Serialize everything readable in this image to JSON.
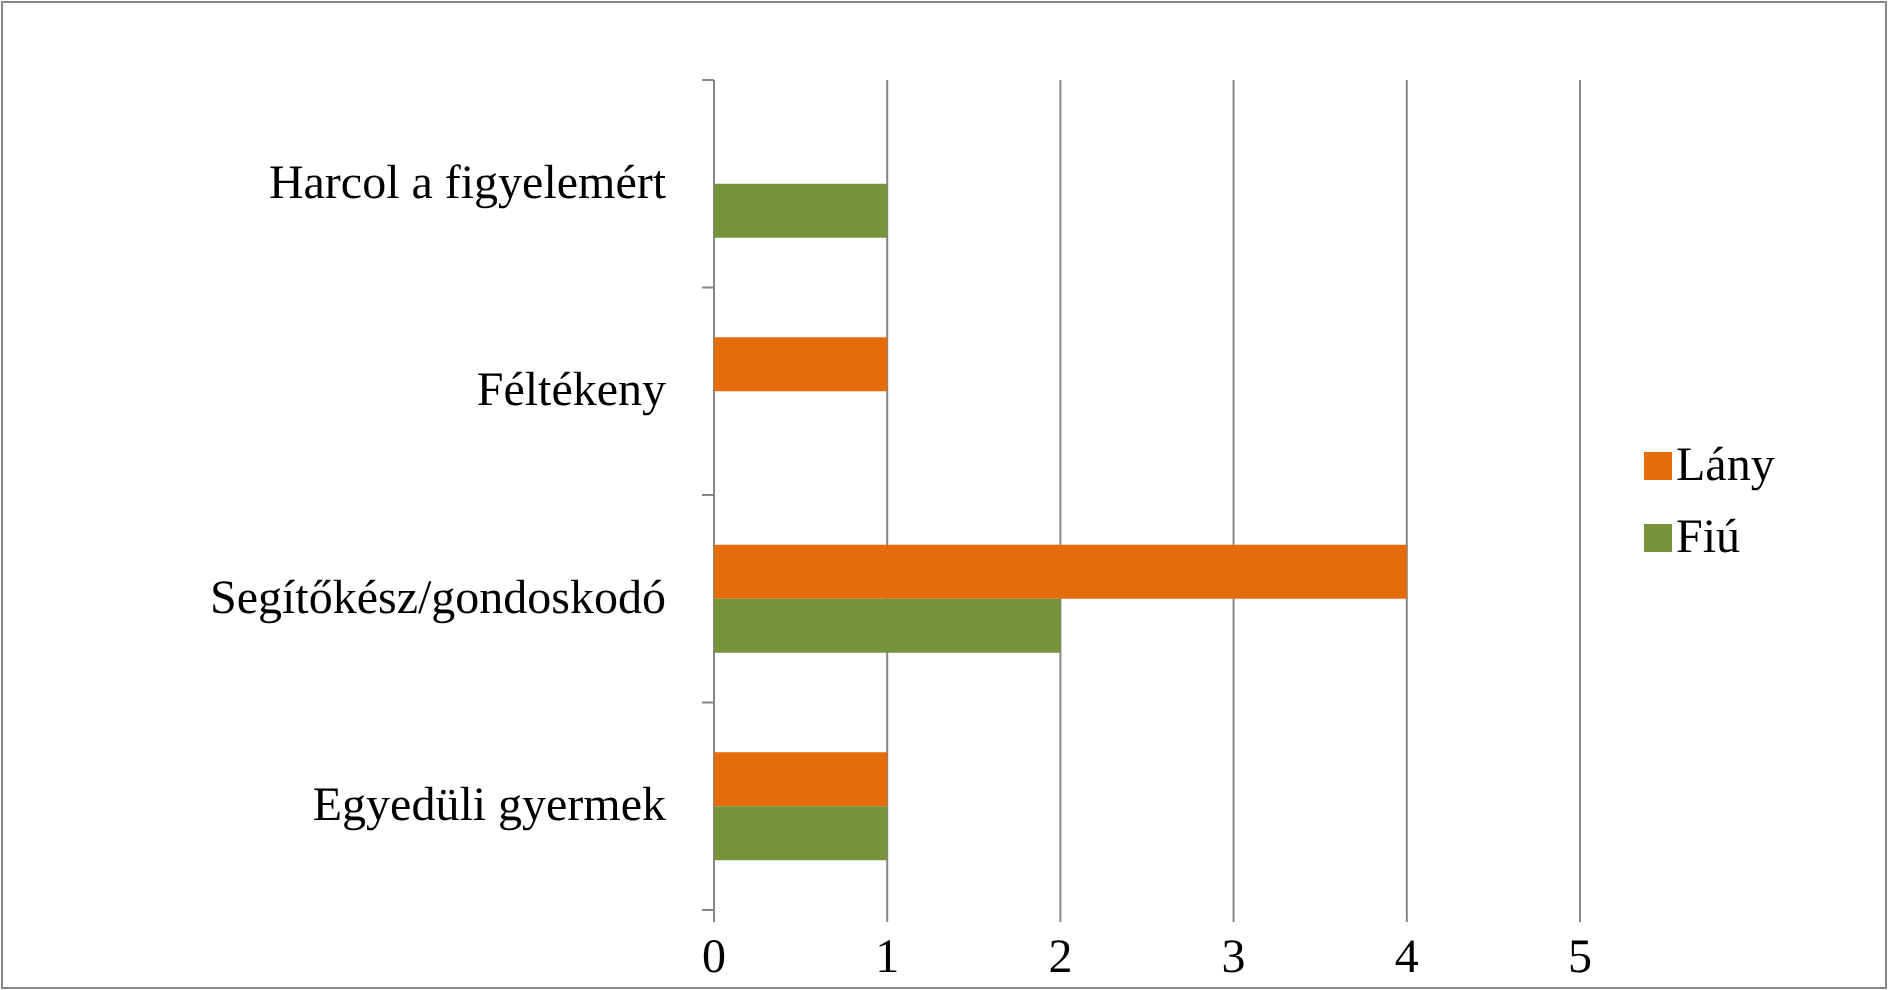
{
  "chart_data": {
    "type": "bar",
    "orientation": "horizontal",
    "categories": [
      "Harcol a figyelemért",
      "Féltékeny",
      "Segítőkész/gondoskodó",
      "Egyedüli gyermek"
    ],
    "series": [
      {
        "name": "Lány",
        "color": "#e46c0a",
        "values": [
          0,
          1,
          4,
          1
        ]
      },
      {
        "name": "Fiú",
        "color": "#77933c",
        "values": [
          1,
          0,
          2,
          1
        ]
      }
    ],
    "xlim": [
      0,
      5
    ],
    "xticks": [
      0,
      1,
      2,
      3,
      4,
      5
    ],
    "grid": "x",
    "legend": "right"
  }
}
